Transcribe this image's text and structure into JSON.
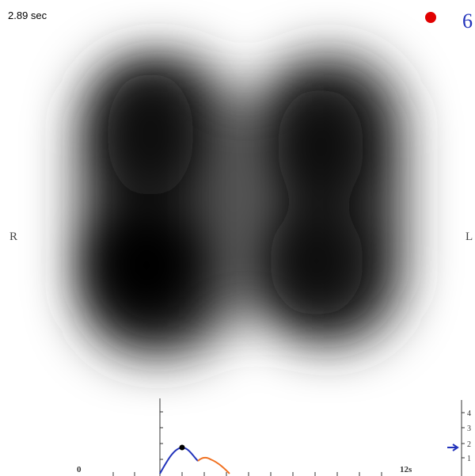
{
  "header": {
    "time": "2.89 sec",
    "counter": "6"
  },
  "labels": {
    "right": "R",
    "left": "L"
  },
  "graph": {
    "x_start": "0",
    "x_end": "12s"
  },
  "scale": {
    "ticks": [
      "4",
      "3",
      "2",
      "1"
    ]
  }
}
